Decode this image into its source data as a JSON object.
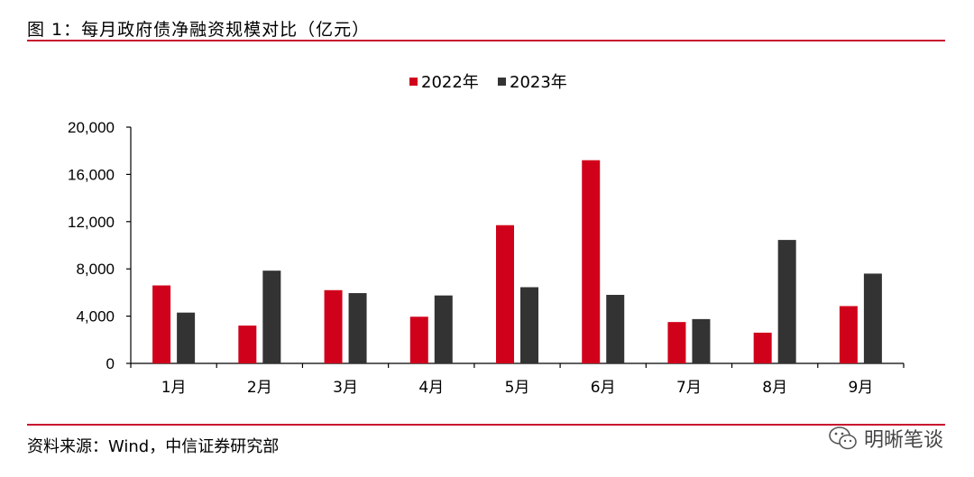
{
  "header": {
    "title": "图 1：每月政府债净融资规模对比（亿元）"
  },
  "footer": {
    "source": "资料来源：Wind，中信证券研究部",
    "watermark_text": "明晰笔谈",
    "watermark_icon": "wechat-icon"
  },
  "colors": {
    "accent_red": "#c8102e",
    "series_2022": "#d0021b",
    "series_2023": "#333333"
  },
  "chart_data": {
    "type": "bar",
    "title": "",
    "xlabel": "",
    "ylabel": "",
    "categories": [
      "1月",
      "2月",
      "3月",
      "4月",
      "5月",
      "6月",
      "7月",
      "8月",
      "9月"
    ],
    "series": [
      {
        "name": "2022年",
        "color": "#d0021b",
        "values": [
          6600,
          3200,
          6200,
          3950,
          11700,
          17200,
          3500,
          2600,
          4850
        ]
      },
      {
        "name": "2023年",
        "color": "#333333",
        "values": [
          4300,
          7850,
          5950,
          5750,
          6450,
          5800,
          3750,
          10450,
          7600
        ]
      }
    ],
    "ylim": [
      0,
      20000
    ],
    "yticks": [
      0,
      4000,
      8000,
      12000,
      16000,
      20000
    ],
    "ytick_labels": [
      "0",
      "4,000",
      "8,000",
      "12,000",
      "16,000",
      "20,000"
    ],
    "grid": false,
    "legend_position": "top-center"
  }
}
